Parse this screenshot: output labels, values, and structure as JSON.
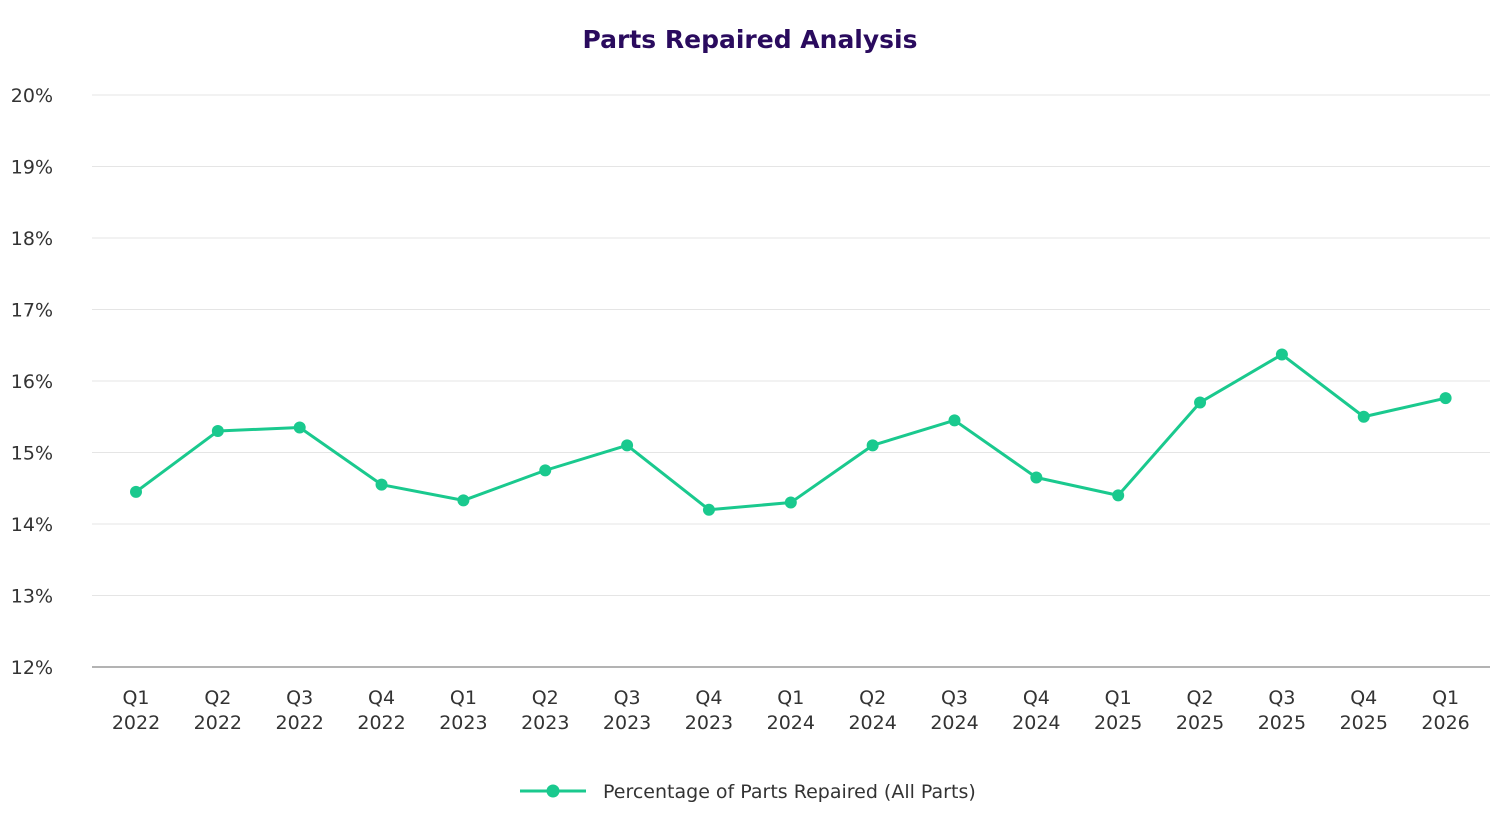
{
  "chart_data": {
    "type": "line",
    "title": "Parts Repaired Analysis",
    "xlabel": "",
    "ylabel": "",
    "categories": [
      [
        "Q1",
        "2022"
      ],
      [
        "Q2",
        "2022"
      ],
      [
        "Q3",
        "2022"
      ],
      [
        "Q4",
        "2022"
      ],
      [
        "Q1",
        "2023"
      ],
      [
        "Q2",
        "2023"
      ],
      [
        "Q3",
        "2023"
      ],
      [
        "Q4",
        "2023"
      ],
      [
        "Q1",
        "2024"
      ],
      [
        "Q2",
        "2024"
      ],
      [
        "Q3",
        "2024"
      ],
      [
        "Q4",
        "2024"
      ],
      [
        "Q1",
        "2025"
      ],
      [
        "Q2",
        "2025"
      ],
      [
        "Q3",
        "2025"
      ],
      [
        "Q4",
        "2025"
      ],
      [
        "Q1",
        "2026"
      ]
    ],
    "y_ticks": [
      "12%",
      "13%",
      "14%",
      "15%",
      "16%",
      "17%",
      "18%",
      "19%",
      "20%"
    ],
    "ylim": [
      12,
      20
    ],
    "grid": true,
    "legend_position": "bottom-center",
    "series": [
      {
        "name": "Percentage of Parts Repaired (All Parts)",
        "color": "#1ac98e",
        "values": [
          14.45,
          15.3,
          15.35,
          14.55,
          14.33,
          14.75,
          15.1,
          14.2,
          14.3,
          15.1,
          15.45,
          14.65,
          14.4,
          15.7,
          16.37,
          15.5,
          15.76
        ]
      }
    ],
    "colors": {
      "title": "#2a0b5e",
      "grid": "#e5e5e5",
      "axis": "#9a9a9a",
      "text": "#333333"
    }
  }
}
